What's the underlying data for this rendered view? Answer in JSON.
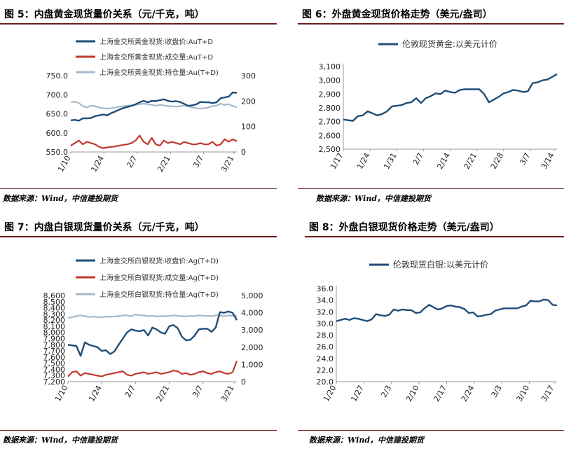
{
  "figures": [
    {
      "title": "图 5：内盘黄金现货量价关系（元/千克，吨）"
    },
    {
      "title": "图 6：外盘黄金现货价格走势（美元/盎司）"
    },
    {
      "title": "图 7：内盘白银现货量价关系（元/千克，吨）"
    },
    {
      "title": "图 8：外盘白银现货价格走势（美元/盎司）"
    }
  ],
  "source_text": "数据来源：Wind，中信建投期货",
  "colors": {
    "navy": "#1f4e79",
    "red": "#c0392b",
    "gray": "#a6b9c9",
    "rule": "#6e1f1f"
  },
  "chart_data": [
    {
      "type": "line",
      "title": "",
      "x_ticks": [
        "1/10",
        "1/24",
        "2/7",
        "2/21",
        "3/7",
        "3/21"
      ],
      "y_ticks": [
        "550.0",
        "600.0",
        "650.0",
        "700.0",
        "750.0"
      ],
      "y2_ticks": [
        "0",
        "100",
        "200",
        "300"
      ],
      "ylim": [
        550,
        750
      ],
      "y2lim": [
        0,
        300
      ],
      "grid": false,
      "legend_placement": "top",
      "series": [
        {
          "name": "上海金交所黄金现货:收盘价:AuT+D",
          "axis": "left",
          "color": "navy",
          "values": [
            633,
            634,
            632,
            638,
            638,
            639,
            644,
            646,
            648,
            646,
            652,
            656,
            661,
            665,
            668,
            671,
            675,
            680,
            684,
            680,
            684,
            683,
            686,
            688,
            684,
            682,
            683,
            681,
            676,
            671,
            672,
            675,
            681,
            680,
            680,
            678,
            680,
            691,
            693,
            695,
            706,
            705
          ]
        },
        {
          "name": "上海金交所黄金现货:成交量:AuT+D",
          "axis": "right",
          "color": "red",
          "values": [
            25,
            35,
            45,
            30,
            40,
            35,
            30,
            20,
            15,
            18,
            20,
            22,
            25,
            28,
            30,
            35,
            45,
            65,
            40,
            30,
            55,
            30,
            25,
            45,
            35,
            40,
            35,
            30,
            40,
            35,
            30,
            30,
            35,
            30,
            30,
            40,
            25,
            30,
            50,
            40,
            50,
            42
          ]
        },
        {
          "name": "上海金交所黄金现货:持仓量:Au(T+D)",
          "axis": "right",
          "color": "gray",
          "values": [
            195,
            198,
            192,
            180,
            175,
            182,
            180,
            175,
            172,
            170,
            172,
            175,
            178,
            180,
            182,
            183,
            185,
            188,
            190,
            188,
            185,
            182,
            185,
            183,
            180,
            180,
            178,
            180,
            182,
            180,
            175,
            172,
            170,
            172,
            175,
            180,
            182,
            190,
            185,
            188,
            180,
            176
          ]
        }
      ]
    },
    {
      "type": "line",
      "title": "",
      "x_ticks": [
        "1/17",
        "1/24",
        "1/31",
        "2/7",
        "2/14",
        "2/21",
        "2/28",
        "3/7",
        "3/14"
      ],
      "y_ticks": [
        "2,500",
        "2,600",
        "2,700",
        "2,800",
        "2,900",
        "3,000",
        "3,100"
      ],
      "ylim": [
        2500,
        3100
      ],
      "grid": false,
      "legend_placement": "top",
      "series": [
        {
          "name": "伦敦现货黄金:以美元计价",
          "color": "navy",
          "values": [
            2715,
            2710,
            2706,
            2740,
            2745,
            2775,
            2760,
            2745,
            2755,
            2775,
            2810,
            2815,
            2820,
            2835,
            2840,
            2870,
            2835,
            2870,
            2885,
            2905,
            2900,
            2925,
            2915,
            2910,
            2930,
            2935,
            2935,
            2935,
            2935,
            2900,
            2840,
            2860,
            2880,
            2905,
            2915,
            2930,
            2925,
            2915,
            2920,
            2980,
            2985,
            3000,
            3005,
            3025,
            3045
          ]
        }
      ]
    },
    {
      "type": "line",
      "title": "",
      "x_ticks": [
        "1/10",
        "1/24",
        "2/7",
        "2/21",
        "3/7",
        "3/21"
      ],
      "y_ticks": [
        "7,200",
        "7,300",
        "7,400",
        "7,500",
        "7,600",
        "7,700",
        "7,800",
        "7,900",
        "8,000",
        "8,100",
        "8,200",
        "8,300",
        "8,400",
        "8,500",
        "8,600"
      ],
      "y2_ticks": [
        "0",
        "1,000",
        "2,000",
        "3,000",
        "4,000",
        "5,000"
      ],
      "ylim": [
        7200,
        8600
      ],
      "y2lim": [
        0,
        5000
      ],
      "grid": false,
      "legend_placement": "top",
      "series": [
        {
          "name": "上海金交所白银现货:收盘价:Ag(T+D)",
          "axis": "left",
          "color": "navy",
          "values": [
            7800,
            7790,
            7780,
            7620,
            7840,
            7800,
            7780,
            7760,
            7700,
            7710,
            7650,
            7690,
            7800,
            7900,
            8000,
            8050,
            8030,
            8020,
            8040,
            7950,
            8080,
            8050,
            8000,
            7980,
            8100,
            8120,
            8070,
            7930,
            7870,
            7880,
            7950,
            8050,
            8060,
            8060,
            8010,
            8080,
            8330,
            8320,
            8340,
            8320,
            8200
          ]
        },
        {
          "name": "上海金交所白银现货:成交量:Ag(T+D)",
          "axis": "right",
          "color": "red",
          "values": [
            300,
            550,
            600,
            350,
            500,
            450,
            400,
            350,
            300,
            400,
            450,
            500,
            550,
            600,
            400,
            350,
            450,
            500,
            550,
            450,
            500,
            550,
            450,
            500,
            550,
            650,
            600,
            450,
            500,
            400,
            450,
            550,
            600,
            500,
            450,
            550,
            600,
            500,
            450,
            550,
            1200
          ]
        },
        {
          "name": "上海金交所白银现货:持仓量:Ag(T+D)",
          "axis": "right",
          "color": "gray",
          "values": [
            3700,
            3750,
            3800,
            3850,
            3800,
            3750,
            3780,
            3750,
            3730,
            3780,
            3760,
            3790,
            3800,
            3850,
            3850,
            3800,
            3900,
            3850,
            3850,
            3800,
            3820,
            3780,
            3800,
            3800,
            3820,
            3850,
            3820,
            3800,
            3780,
            3820,
            3800,
            3850,
            3830,
            3820,
            3800,
            3850,
            3850,
            3800,
            3850,
            3820,
            3820
          ]
        }
      ]
    },
    {
      "type": "line",
      "title": "",
      "x_ticks": [
        "1/20",
        "1/27",
        "2/3",
        "2/10",
        "2/17",
        "2/24",
        "3/3",
        "3/10",
        "3/17"
      ],
      "y_ticks": [
        "20.0",
        "22.0",
        "24.0",
        "26.0",
        "28.0",
        "30.0",
        "32.0",
        "34.0",
        "36.0"
      ],
      "ylim": [
        20,
        36
      ],
      "grid": false,
      "legend_placement": "top",
      "series": [
        {
          "name": "伦敦现货白银:以美元计价",
          "color": "navy",
          "values": [
            30.4,
            30.6,
            30.8,
            30.6,
            30.9,
            30.8,
            30.6,
            30.4,
            30.7,
            31.6,
            31.4,
            31.3,
            31.5,
            32.4,
            32.2,
            32.4,
            32.3,
            32.3,
            31.8,
            31.9,
            32.6,
            33.2,
            32.8,
            32.4,
            32.6,
            33.0,
            33.1,
            32.9,
            32.8,
            32.5,
            31.8,
            31.9,
            31.2,
            31.3,
            31.5,
            31.6,
            32.2,
            32.4,
            32.6,
            32.6,
            32.6,
            32.6,
            32.9,
            33.1,
            33.9,
            33.8,
            33.8,
            34.1,
            34.0,
            33.2,
            33.1
          ]
        }
      ]
    }
  ]
}
